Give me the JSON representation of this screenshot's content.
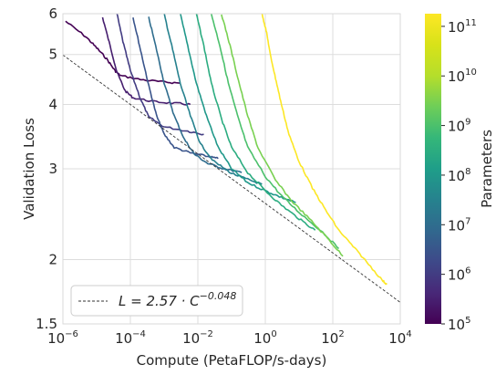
{
  "chart_data": {
    "type": "line",
    "title": "",
    "xlabel": "Compute (PetaFLOP/s-days)",
    "ylabel": "Validation Loss",
    "xscale": "log",
    "yscale": "log",
    "xlim": [
      1e-06,
      10000
    ],
    "ylim": [
      1.5,
      6
    ],
    "grid": true,
    "legend_position": "lower-left",
    "x_ticks": [
      {
        "value": 1e-06,
        "base": "10",
        "exp": "−6"
      },
      {
        "value": 0.0001,
        "base": "10",
        "exp": "−4"
      },
      {
        "value": 0.01,
        "base": "10",
        "exp": "−2"
      },
      {
        "value": 1,
        "base": "10",
        "exp": "0"
      },
      {
        "value": 100,
        "base": "10",
        "exp": "2"
      },
      {
        "value": 10000,
        "base": "10",
        "exp": "4"
      }
    ],
    "y_ticks": [
      {
        "value": 1.5,
        "label": "1.5"
      },
      {
        "value": 2,
        "label": "2"
      },
      {
        "value": 3,
        "label": "3"
      },
      {
        "value": 4,
        "label": "4"
      },
      {
        "value": 5,
        "label": "5"
      },
      {
        "value": 6,
        "label": "6"
      }
    ],
    "frontier": {
      "label_prefix": "L = 2.57 · C",
      "label_exp": "−0.048",
      "coef": 2.57,
      "exponent": -0.048,
      "color": "#333333"
    },
    "colorbar": {
      "label": "Parameters",
      "scale": "log",
      "colormap": "viridis",
      "min": 100000,
      "max": 180000000000,
      "ticks": [
        {
          "value": 100000,
          "base": "10",
          "exp": "5"
        },
        {
          "value": 1000000,
          "base": "10",
          "exp": "6"
        },
        {
          "value": 10000000,
          "base": "10",
          "exp": "7"
        },
        {
          "value": 100000000,
          "base": "10",
          "exp": "8"
        },
        {
          "value": 1000000000,
          "base": "10",
          "exp": "9"
        },
        {
          "value": 10000000000,
          "base": "10",
          "exp": "10"
        },
        {
          "value": 100000000000,
          "base": "10",
          "exp": "11"
        }
      ]
    },
    "series": [
      {
        "params": 100000,
        "points": [
          [
            1.2e-06,
            5.8
          ],
          [
            5e-06,
            5.4
          ],
          [
            1e-05,
            5.15
          ],
          [
            2e-05,
            4.9
          ],
          [
            3.5e-05,
            4.65
          ],
          [
            5e-05,
            4.55
          ],
          [
            0.0002,
            4.47
          ],
          [
            0.001,
            4.42
          ],
          [
            0.003,
            4.4
          ]
        ]
      },
      {
        "params": 300000,
        "points": [
          [
            1.5e-05,
            5.9
          ],
          [
            2.5e-05,
            5.2
          ],
          [
            4e-05,
            4.62
          ],
          [
            7e-05,
            4.25
          ],
          [
            0.00012,
            4.12
          ],
          [
            0.0005,
            4.05
          ],
          [
            0.002,
            4.02
          ],
          [
            0.006,
            4.0
          ]
        ]
      },
      {
        "params": 1000000,
        "points": [
          [
            4e-05,
            6.0
          ],
          [
            6e-05,
            5.3
          ],
          [
            0.0001,
            4.65
          ],
          [
            0.0002,
            4.1
          ],
          [
            0.00035,
            3.78
          ],
          [
            0.001,
            3.62
          ],
          [
            0.005,
            3.55
          ],
          [
            0.015,
            3.5
          ]
        ]
      },
      {
        "params": 3000000,
        "points": [
          [
            0.00012,
            5.9
          ],
          [
            0.0002,
            5.1
          ],
          [
            0.00035,
            4.35
          ],
          [
            0.0006,
            3.8
          ],
          [
            0.001,
            3.5
          ],
          [
            0.002,
            3.3
          ],
          [
            0.006,
            3.22
          ],
          [
            0.02,
            3.17
          ],
          [
            0.04,
            3.14
          ]
        ]
      },
      {
        "params": 10000000,
        "points": [
          [
            0.00035,
            5.9
          ],
          [
            0.0006,
            5.1
          ],
          [
            0.001,
            4.4
          ],
          [
            0.002,
            3.8
          ],
          [
            0.004,
            3.42
          ],
          [
            0.008,
            3.2
          ],
          [
            0.02,
            3.07
          ],
          [
            0.06,
            3.0
          ],
          [
            0.2,
            2.95
          ]
        ]
      },
      {
        "params": 30000000,
        "points": [
          [
            0.001,
            6.0
          ],
          [
            0.0018,
            5.1
          ],
          [
            0.003,
            4.4
          ],
          [
            0.006,
            3.8
          ],
          [
            0.012,
            3.35
          ],
          [
            0.03,
            3.1
          ],
          [
            0.1,
            2.94
          ],
          [
            0.3,
            2.86
          ],
          [
            0.8,
            2.8
          ]
        ]
      },
      {
        "params": 100000000,
        "points": [
          [
            0.003,
            6.0
          ],
          [
            0.005,
            5.2
          ],
          [
            0.009,
            4.4
          ],
          [
            0.018,
            3.8
          ],
          [
            0.04,
            3.3
          ],
          [
            0.1,
            3.0
          ],
          [
            0.3,
            2.82
          ],
          [
            1,
            2.72
          ],
          [
            3,
            2.64
          ],
          [
            8,
            2.58
          ]
        ]
      },
      {
        "params": 300000000,
        "points": [
          [
            0.009,
            6.0
          ],
          [
            0.015,
            5.2
          ],
          [
            0.025,
            4.4
          ],
          [
            0.05,
            3.75
          ],
          [
            0.1,
            3.3
          ],
          [
            0.3,
            2.95
          ],
          [
            1,
            2.72
          ],
          [
            3,
            2.55
          ],
          [
            10,
            2.4
          ],
          [
            30,
            2.28
          ]
        ]
      },
      {
        "params": 1000000000,
        "points": [
          [
            0.025,
            6.0
          ],
          [
            0.045,
            5.2
          ],
          [
            0.08,
            4.4
          ],
          [
            0.15,
            3.8
          ],
          [
            0.3,
            3.3
          ],
          [
            1,
            2.9
          ],
          [
            3,
            2.66
          ],
          [
            10,
            2.47
          ],
          [
            50,
            2.26
          ],
          [
            150,
            2.1
          ]
        ]
      },
      {
        "params": 3000000000,
        "points": [
          [
            0.05,
            6.0
          ],
          [
            0.09,
            5.2
          ],
          [
            0.16,
            4.45
          ],
          [
            0.3,
            3.8
          ],
          [
            0.6,
            3.3
          ],
          [
            2,
            2.85
          ],
          [
            6,
            2.6
          ],
          [
            20,
            2.4
          ],
          [
            70,
            2.2
          ],
          [
            200,
            2.03
          ]
        ]
      },
      {
        "params": 175000000000,
        "points": [
          [
            0.8,
            6.0
          ],
          [
            1.1,
            5.5
          ],
          [
            1.4,
            5.0
          ],
          [
            2,
            4.5
          ],
          [
            3,
            4.0
          ],
          [
            5,
            3.5
          ],
          [
            10,
            3.1
          ],
          [
            25,
            2.75
          ],
          [
            60,
            2.5
          ],
          [
            150,
            2.28
          ],
          [
            400,
            2.12
          ],
          [
            1000,
            1.98
          ],
          [
            3000,
            1.82
          ],
          [
            4000,
            1.79
          ]
        ]
      }
    ]
  }
}
